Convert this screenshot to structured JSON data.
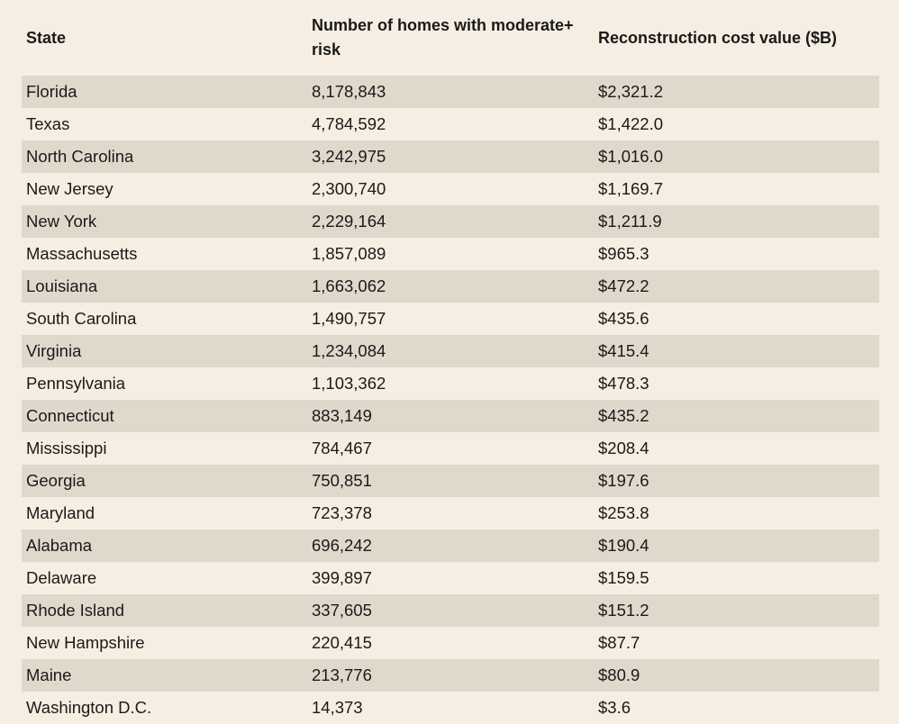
{
  "table": {
    "headers": {
      "state": "State",
      "homes": "Number of homes with moderate+ risk",
      "cost": "Reconstruction cost value ($B)"
    },
    "rows": [
      {
        "state": "Florida",
        "homes": "8,178,843",
        "cost": "$2,321.2"
      },
      {
        "state": "Texas",
        "homes": "4,784,592",
        "cost": "$1,422.0"
      },
      {
        "state": "North Carolina",
        "homes": "3,242,975",
        "cost": "$1,016.0"
      },
      {
        "state": "New Jersey",
        "homes": "2,300,740",
        "cost": "$1,169.7"
      },
      {
        "state": "New York",
        "homes": "2,229,164",
        "cost": "$1,211.9"
      },
      {
        "state": "Massachusetts",
        "homes": "1,857,089",
        "cost": "$965.3"
      },
      {
        "state": "Louisiana",
        "homes": "1,663,062",
        "cost": "$472.2"
      },
      {
        "state": "South Carolina",
        "homes": "1,490,757",
        "cost": "$435.6"
      },
      {
        "state": "Virginia",
        "homes": "1,234,084",
        "cost": "$415.4"
      },
      {
        "state": "Pennsylvania",
        "homes": "1,103,362",
        "cost": "$478.3"
      },
      {
        "state": "Connecticut",
        "homes": "883,149",
        "cost": "$435.2"
      },
      {
        "state": "Mississippi",
        "homes": "784,467",
        "cost": "$208.4"
      },
      {
        "state": "Georgia",
        "homes": "750,851",
        "cost": "$197.6"
      },
      {
        "state": "Maryland",
        "homes": "723,378",
        "cost": "$253.8"
      },
      {
        "state": "Alabama",
        "homes": "696,242",
        "cost": "$190.4"
      },
      {
        "state": "Delaware",
        "homes": "399,897",
        "cost": "$159.5"
      },
      {
        "state": "Rhode Island",
        "homes": "337,605",
        "cost": "$151.2"
      },
      {
        "state": "New Hampshire",
        "homes": "220,415",
        "cost": "$87.7"
      },
      {
        "state": "Maine",
        "homes": "213,776",
        "cost": "$80.9"
      },
      {
        "state": "Washington D.C.",
        "homes": "14,373",
        "cost": "$3.6"
      }
    ]
  }
}
